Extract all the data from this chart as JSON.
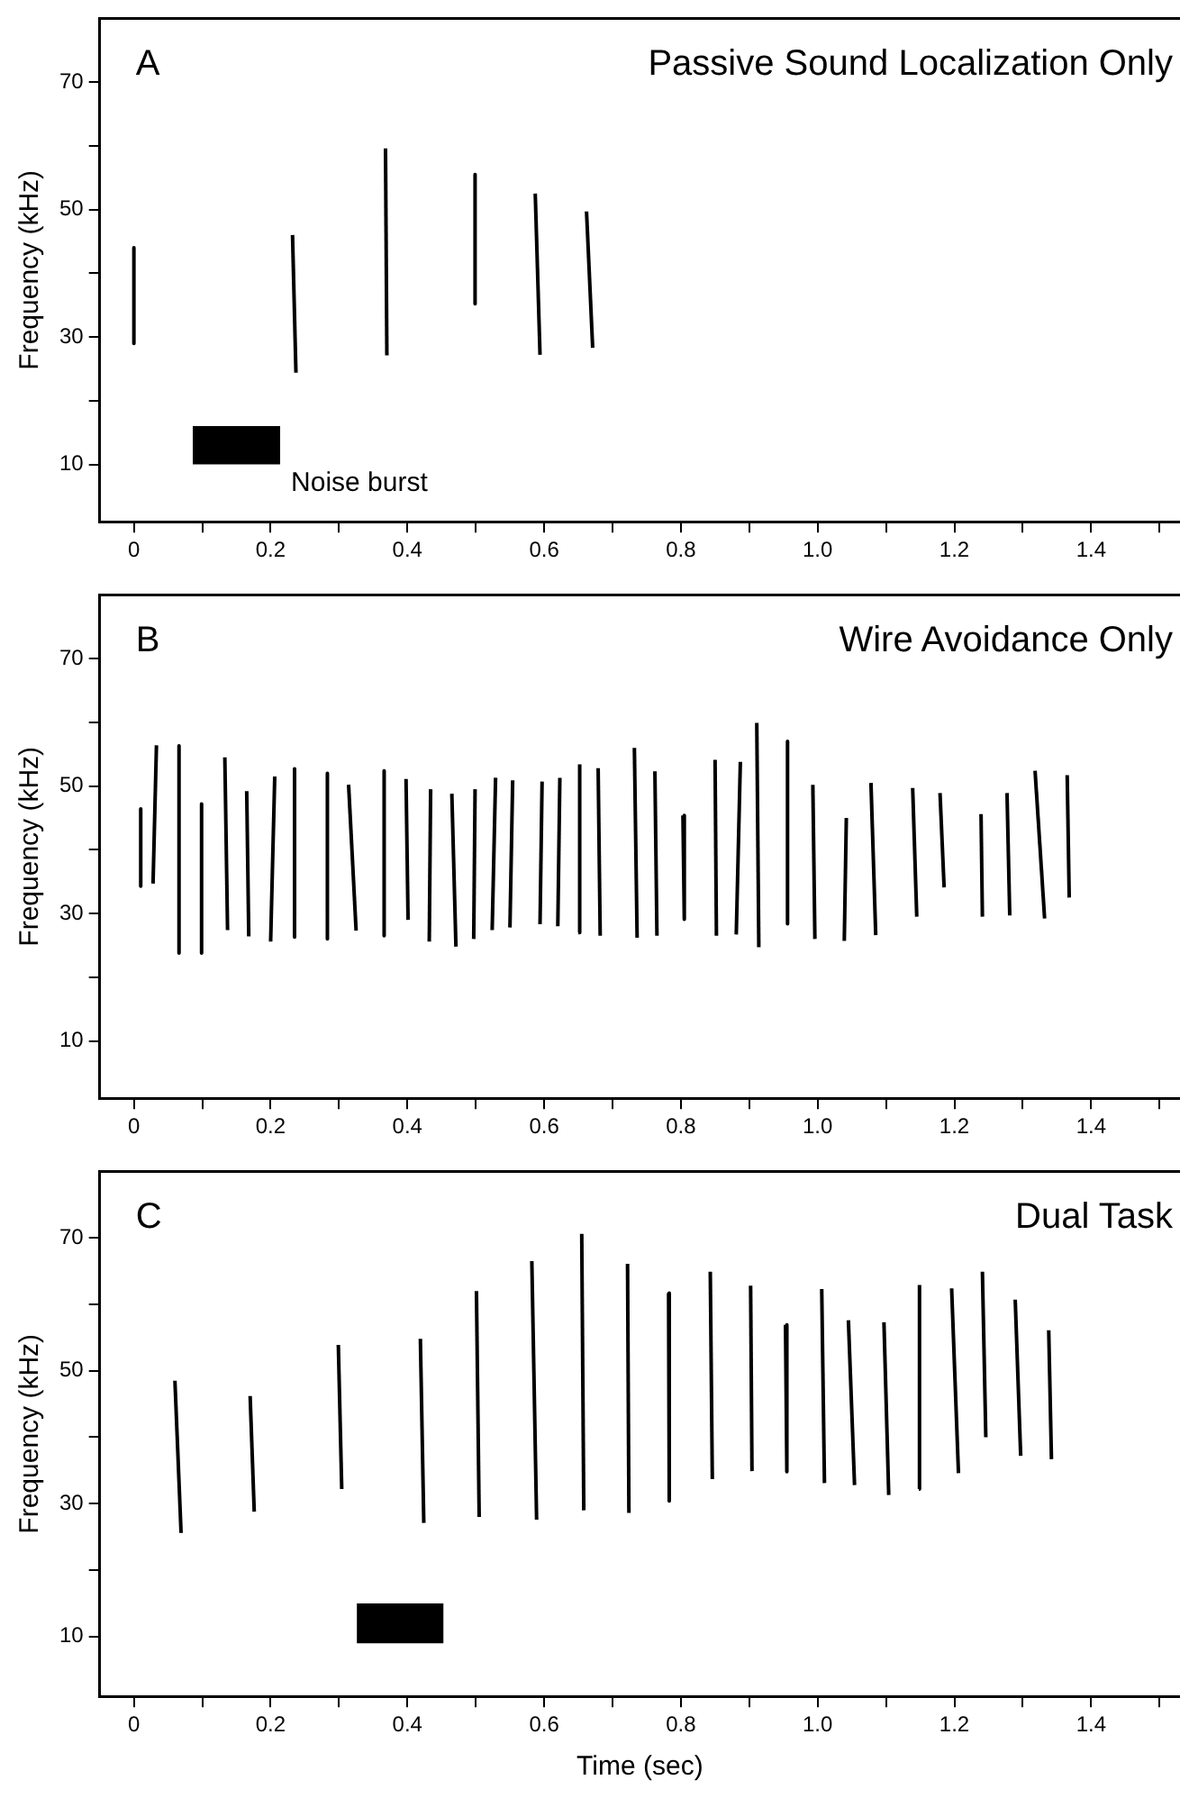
{
  "chart_data": [
    {
      "type": "line",
      "title": "Passive Sound Localization Only",
      "annotations": [
        "A"
      ],
      "ylabel": "Frequency (kHz)",
      "xlim": [
        -0.05,
        1.53
      ],
      "ylim": [
        1,
        80
      ],
      "xticks": [
        {
          "value": 0,
          "label": "0"
        },
        {
          "value": 0.1,
          "label": null
        },
        {
          "value": 0.2,
          "label": "0.2"
        },
        {
          "value": 0.3,
          "label": null
        },
        {
          "value": 0.4,
          "label": "0.4"
        },
        {
          "value": 0.5,
          "label": null
        },
        {
          "value": 0.6,
          "label": "0.6"
        },
        {
          "value": 0.7,
          "label": null
        },
        {
          "value": 0.8,
          "label": "0.8"
        },
        {
          "value": 0.9,
          "label": null
        },
        {
          "value": 1.0,
          "label": "1.0"
        },
        {
          "value": 1.1,
          "label": null
        },
        {
          "value": 1.2,
          "label": "1.2"
        },
        {
          "value": 1.3,
          "label": null
        },
        {
          "value": 1.4,
          "label": "1.4"
        },
        {
          "value": 1.5,
          "label": null
        }
      ],
      "yticks": [
        10,
        {
          "value": 20,
          "label": null
        },
        30,
        {
          "value": 40,
          "label": null
        },
        50,
        {
          "value": 60,
          "label": null
        },
        70
      ],
      "grid": false,
      "marker": "none",
      "series": [
        {
          "type": "line",
          "name": "Noise burst",
          "color": "#000000",
          "x": [
            0.086,
            0.214
          ],
          "values": [
            null,
            null
          ],
          "lower": [
            10,
            10
          ],
          "upper": [
            16,
            16
          ]
        },
        {
          "color": "#000000",
          "x": [
            0,
            0
          ],
          "values": [
            44,
            29
          ]
        },
        {
          "color": "#000000",
          "x": [
            0.232,
            0.237
          ],
          "values": [
            46,
            24.4
          ]
        },
        {
          "color": "#000000",
          "x": [
            0.368,
            0.37
          ],
          "values": [
            59.6,
            27.1
          ]
        },
        {
          "color": "#000000",
          "x": [
            0.499,
            0.499
          ],
          "values": [
            55.5,
            35.2
          ]
        },
        {
          "color": "#000000",
          "x": [
            0.587,
            0.594
          ],
          "values": [
            52.5,
            27.2
          ]
        },
        {
          "color": "#000000",
          "x": [
            0.662,
            0.671
          ],
          "values": [
            49.7,
            28.3
          ]
        }
      ]
    },
    {
      "type": "line",
      "title": "Wire Avoidance Only",
      "annotations": [
        "B"
      ],
      "ylabel": "Frequency (kHz)",
      "xlim": [
        -0.05,
        1.53
      ],
      "ylim": [
        1,
        80
      ],
      "xticks": [
        {
          "value": 0,
          "label": "0"
        },
        {
          "value": 0.1,
          "label": null
        },
        {
          "value": 0.2,
          "label": "0.2"
        },
        {
          "value": 0.3,
          "label": null
        },
        {
          "value": 0.4,
          "label": "0.4"
        },
        {
          "value": 0.5,
          "label": null
        },
        {
          "value": 0.6,
          "label": "0.6"
        },
        {
          "value": 0.7,
          "label": null
        },
        {
          "value": 0.8,
          "label": "0.8"
        },
        {
          "value": 0.9,
          "label": null
        },
        {
          "value": 1.0,
          "label": "1.0"
        },
        {
          "value": 1.1,
          "label": null
        },
        {
          "value": 1.2,
          "label": "1.2"
        },
        {
          "value": 1.3,
          "label": null
        },
        {
          "value": 1.4,
          "label": "1.4"
        },
        {
          "value": 1.5,
          "label": null
        }
      ],
      "yticks": [
        10,
        {
          "value": 20,
          "label": null
        },
        30,
        {
          "value": 40,
          "label": null
        },
        50,
        {
          "value": 60,
          "label": null
        },
        70
      ],
      "grid": false,
      "marker": "none",
      "series": [
        {
          "color": "#000000",
          "x": [
            0.01,
            0.01
          ],
          "values": [
            46.4,
            34.3
          ]
        },
        {
          "color": "#000000",
          "x": [
            0.028,
            0.033
          ],
          "values": [
            34.7,
            56.4
          ]
        },
        {
          "color": "#000000",
          "x": [
            0.066,
            0.066
          ],
          "values": [
            56.3,
            23.8
          ]
        },
        {
          "color": "#000000",
          "x": [
            0.099,
            0.099
          ],
          "values": [
            47.2,
            23.8
          ]
        },
        {
          "color": "#000000",
          "x": [
            0.133,
            0.137
          ],
          "values": [
            54.5,
            27.4
          ]
        },
        {
          "color": "#000000",
          "x": [
            0.165,
            0.168
          ],
          "values": [
            49.2,
            26.4
          ]
        },
        {
          "color": "#000000",
          "x": [
            0.2,
            0.206
          ],
          "values": [
            25.6,
            51.5
          ]
        },
        {
          "color": "#000000",
          "x": [
            0.235,
            0.235
          ],
          "values": [
            52.7,
            26.3
          ]
        },
        {
          "color": "#000000",
          "x": [
            0.283,
            0.283
          ],
          "values": [
            52,
            26
          ]
        },
        {
          "color": "#000000",
          "x": [
            0.314,
            0.325
          ],
          "values": [
            50.2,
            27.3
          ]
        },
        {
          "color": "#000000",
          "x": [
            0.366,
            0.366
          ],
          "values": [
            52.4,
            26.5
          ]
        },
        {
          "color": "#000000",
          "x": [
            0.398,
            0.401
          ],
          "values": [
            51.1,
            29
          ]
        },
        {
          "color": "#000000",
          "x": [
            0.432,
            0.434
          ],
          "values": [
            25.6,
            49.5
          ]
        },
        {
          "color": "#000000",
          "x": [
            0.465,
            0.471
          ],
          "values": [
            48.8,
            24.8
          ]
        },
        {
          "color": "#000000",
          "x": [
            0.497,
            0.499
          ],
          "values": [
            26,
            49.5
          ]
        },
        {
          "color": "#000000",
          "x": [
            0.524,
            0.529
          ],
          "values": [
            27.4,
            51.3
          ]
        },
        {
          "color": "#000000",
          "x": [
            0.55,
            0.554
          ],
          "values": [
            27.8,
            50.9
          ]
        },
        {
          "color": "#000000",
          "x": [
            0.594,
            0.597
          ],
          "values": [
            28.3,
            50.7
          ]
        },
        {
          "color": "#000000",
          "x": [
            0.62,
            0.623
          ],
          "values": [
            28,
            51.3
          ]
        },
        {
          "color": "#000000",
          "x": [
            0.65,
            0.652
          ],
          "values": [
            27,
            53.4
          ]
        },
        {
          "color": "#000000",
          "x": [
            0.679,
            0.682
          ],
          "values": [
            52.8,
            26.5
          ]
        },
        {
          "color": "#000000",
          "x": [
            0.732,
            0.736
          ],
          "values": [
            56,
            26.2
          ]
        },
        {
          "color": "#000000",
          "x": [
            0.762,
            0.765
          ],
          "values": [
            52.3,
            26.5
          ]
        },
        {
          "color": "#000000",
          "x": [
            0.803,
            0.805
          ],
          "values": [
            45.4,
            29.1
          ]
        },
        {
          "color": "#000000",
          "x": [
            0.85,
            0.852
          ],
          "values": [
            54.1,
            26.5
          ]
        },
        {
          "color": "#000000",
          "x": [
            0.881,
            0.887
          ],
          "values": [
            26.7,
            53.8
          ]
        },
        {
          "color": "#000000",
          "x": [
            0.911,
            0.914
          ],
          "values": [
            59.9,
            24.7
          ]
        },
        {
          "color": "#000000",
          "x": [
            0.956,
            0.956
          ],
          "values": [
            57,
            28.4
          ]
        },
        {
          "color": "#000000",
          "x": [
            0.993,
            0.996
          ],
          "values": [
            50.2,
            26
          ]
        },
        {
          "color": "#000000",
          "x": [
            1.039,
            1.042
          ],
          "values": [
            25.7,
            45
          ]
        },
        {
          "color": "#000000",
          "x": [
            1.078,
            1.085
          ],
          "values": [
            50.5,
            26.6
          ]
        },
        {
          "color": "#000000",
          "x": [
            1.139,
            1.145
          ],
          "values": [
            49.7,
            29.5
          ]
        },
        {
          "color": "#000000",
          "x": [
            1.179,
            1.185
          ],
          "values": [
            48.9,
            34.1
          ]
        },
        {
          "color": "#000000",
          "x": [
            1.239,
            1.241
          ],
          "values": [
            45.6,
            29.5
          ]
        },
        {
          "color": "#000000",
          "x": [
            1.277,
            1.281
          ],
          "values": [
            48.9,
            29.7
          ]
        },
        {
          "color": "#000000",
          "x": [
            1.318,
            1.332
          ],
          "values": [
            52.4,
            29.2
          ]
        },
        {
          "color": "#000000",
          "x": [
            1.365,
            1.368
          ],
          "values": [
            51.7,
            32.5
          ]
        }
      ]
    },
    {
      "type": "line",
      "title": "Dual Task",
      "annotations": [
        "C"
      ],
      "xlabel": "Time (sec)",
      "ylabel": "Frequency (kHz)",
      "xlim": [
        -0.05,
        1.53
      ],
      "ylim": [
        1,
        80
      ],
      "xticks": [
        {
          "value": 0,
          "label": "0"
        },
        {
          "value": 0.1,
          "label": null
        },
        {
          "value": 0.2,
          "label": "0.2"
        },
        {
          "value": 0.3,
          "label": null
        },
        {
          "value": 0.4,
          "label": "0.4"
        },
        {
          "value": 0.5,
          "label": null
        },
        {
          "value": 0.6,
          "label": "0.6"
        },
        {
          "value": 0.7,
          "label": null
        },
        {
          "value": 0.8,
          "label": "0.8"
        },
        {
          "value": 0.9,
          "label": null
        },
        {
          "value": 1.0,
          "label": "1.0"
        },
        {
          "value": 1.1,
          "label": null
        },
        {
          "value": 1.2,
          "label": "1.2"
        },
        {
          "value": 1.3,
          "label": null
        },
        {
          "value": 1.4,
          "label": "1.4"
        },
        {
          "value": 1.5,
          "label": null
        }
      ],
      "yticks": [
        10,
        {
          "value": 20,
          "label": null
        },
        30,
        {
          "value": 40,
          "label": null
        },
        50,
        {
          "value": 60,
          "label": null
        },
        70
      ],
      "grid": false,
      "marker": "none",
      "series": [
        {
          "type": "line",
          "color": "#000000",
          "x": [
            0.326,
            0.453
          ],
          "values": [
            null,
            null
          ],
          "lower": [
            9,
            9
          ],
          "upper": [
            15,
            15
          ]
        },
        {
          "color": "#000000",
          "x": [
            0.06,
            0.069
          ],
          "values": [
            48.5,
            25.6
          ]
        },
        {
          "color": "#000000",
          "x": [
            0.17,
            0.176
          ],
          "values": [
            46.2,
            28.8
          ]
        },
        {
          "color": "#000000",
          "x": [
            0.299,
            0.304
          ],
          "values": [
            53.9,
            32.2
          ]
        },
        {
          "color": "#000000",
          "x": [
            0.419,
            0.424
          ],
          "values": [
            54.8,
            27.1
          ]
        },
        {
          "color": "#000000",
          "x": [
            0.501,
            0.505
          ],
          "values": [
            62,
            28
          ]
        },
        {
          "color": "#000000",
          "x": [
            0.582,
            0.589
          ],
          "values": [
            66.5,
            27.6
          ]
        },
        {
          "color": "#000000",
          "x": [
            0.655,
            0.658
          ],
          "values": [
            70.6,
            29
          ]
        },
        {
          "color": "#000000",
          "x": [
            0.722,
            0.724
          ],
          "values": [
            66.1,
            28.6
          ]
        },
        {
          "color": "#000000",
          "x": [
            0.782,
            0.783
          ],
          "values": [
            61.7,
            30.4
          ]
        },
        {
          "color": "#000000",
          "x": [
            0.843,
            0.846
          ],
          "values": [
            64.9,
            33.7
          ]
        },
        {
          "color": "#000000",
          "x": [
            0.902,
            0.904
          ],
          "values": [
            62.8,
            34.9
          ]
        },
        {
          "color": "#000000",
          "x": [
            0.953,
            0.955
          ],
          "values": [
            56.9,
            34.8
          ]
        },
        {
          "color": "#000000",
          "x": [
            1.006,
            1.01
          ],
          "values": [
            62.3,
            33.1
          ]
        },
        {
          "color": "#000000",
          "x": [
            1.045,
            1.054
          ],
          "values": [
            57.6,
            32.8
          ]
        },
        {
          "color": "#000000",
          "x": [
            1.097,
            1.104
          ],
          "values": [
            57.3,
            31.3
          ]
        },
        {
          "color": "#000000",
          "x": [
            1.148,
            1.149
          ],
          "values": [
            32.2,
            62.9
          ]
        },
        {
          "color": "#000000",
          "x": [
            1.196,
            1.206
          ],
          "values": [
            62.4,
            34.6
          ]
        },
        {
          "color": "#000000",
          "x": [
            1.241,
            1.246
          ],
          "values": [
            64.9,
            40
          ]
        },
        {
          "color": "#000000",
          "x": [
            1.289,
            1.297
          ],
          "values": [
            60.7,
            37.2
          ]
        },
        {
          "color": "#000000",
          "x": [
            1.338,
            1.342
          ],
          "values": [
            56.1,
            36.7
          ]
        }
      ]
    }
  ]
}
